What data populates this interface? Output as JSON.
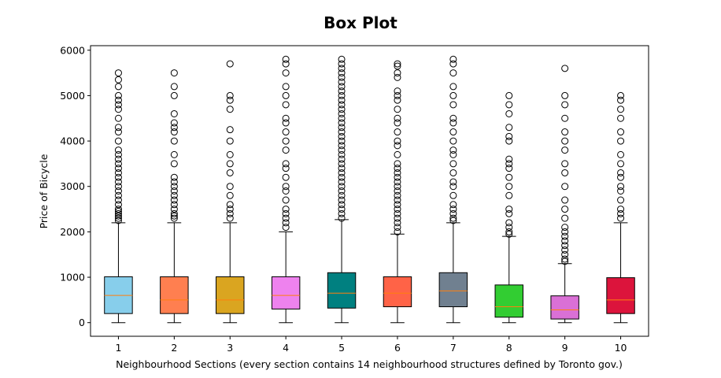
{
  "chart_data": {
    "type": "box",
    "title": "Box Plot",
    "xlabel": "Neighbourhood Sections (every section contains 14 neighbourhood structures defined by Toronto gov.)",
    "ylabel": "Price of Bicycle",
    "ylim": [
      -300,
      6100
    ],
    "yticks": [
      0,
      1000,
      2000,
      3000,
      4000,
      5000,
      6000
    ],
    "grid": false,
    "median_color": "#ff7f0e",
    "boxes": [
      {
        "label": "1",
        "color": "#87ceeb",
        "whisker_low": 0,
        "q1": 200,
        "median": 600,
        "q3": 1010,
        "whisker_high": 2200,
        "fliers": [
          2250,
          2300,
          2350,
          2400,
          2450,
          2500,
          2600,
          2700,
          2800,
          2900,
          3000,
          3100,
          3200,
          3300,
          3400,
          3500,
          3600,
          3700,
          3800,
          4000,
          4200,
          4300,
          4500,
          4700,
          4800,
          4900,
          5000,
          5200,
          5350,
          5500
        ]
      },
      {
        "label": "2",
        "color": "#ff7f50",
        "whisker_low": 0,
        "q1": 200,
        "median": 500,
        "q3": 1010,
        "whisker_high": 2200,
        "fliers": [
          2300,
          2350,
          2400,
          2500,
          2600,
          2700,
          2800,
          2900,
          3000,
          3100,
          3200,
          3500,
          3700,
          4000,
          4200,
          4300,
          4400,
          4600,
          5000,
          5200,
          5500
        ]
      },
      {
        "label": "3",
        "color": "#daa520",
        "whisker_low": 0,
        "q1": 200,
        "median": 500,
        "q3": 1010,
        "whisker_high": 2200,
        "fliers": [
          2300,
          2400,
          2500,
          2600,
          2800,
          3000,
          3300,
          3500,
          3700,
          4000,
          4250,
          4700,
          4900,
          5000,
          5700
        ]
      },
      {
        "label": "4",
        "color": "#ee82ee",
        "whisker_low": 0,
        "q1": 300,
        "median": 600,
        "q3": 1010,
        "whisker_high": 2000,
        "fliers": [
          2100,
          2200,
          2300,
          2400,
          2500,
          2700,
          2900,
          3000,
          3200,
          3400,
          3500,
          3800,
          4000,
          4200,
          4400,
          4500,
          4800,
          5000,
          5200,
          5500,
          5700,
          5800
        ]
      },
      {
        "label": "5",
        "color": "#008080",
        "whisker_low": 0,
        "q1": 320,
        "median": 650,
        "q3": 1100,
        "whisker_high": 2270,
        "fliers": [
          2300,
          2400,
          2500,
          2600,
          2700,
          2800,
          2900,
          3000,
          3100,
          3200,
          3300,
          3400,
          3500,
          3600,
          3700,
          3800,
          3900,
          4000,
          4100,
          4200,
          4300,
          4400,
          4500,
          4600,
          4700,
          4800,
          4900,
          5000,
          5100,
          5200,
          5300,
          5400,
          5500,
          5600,
          5700,
          5800
        ]
      },
      {
        "label": "6",
        "color": "#ff6347",
        "whisker_low": 0,
        "q1": 350,
        "median": 650,
        "q3": 1010,
        "whisker_high": 1950,
        "fliers": [
          2000,
          2100,
          2200,
          2300,
          2400,
          2500,
          2600,
          2700,
          2800,
          2900,
          3000,
          3100,
          3200,
          3300,
          3400,
          3500,
          3700,
          3900,
          4000,
          4200,
          4400,
          4500,
          4700,
          4900,
          5000,
          5100,
          5400,
          5500,
          5650,
          5700
        ]
      },
      {
        "label": "7",
        "color": "#708090",
        "whisker_low": 0,
        "q1": 350,
        "median": 700,
        "q3": 1100,
        "whisker_high": 2200,
        "fliers": [
          2250,
          2300,
          2400,
          2500,
          2600,
          2800,
          3000,
          3100,
          3300,
          3500,
          3700,
          3800,
          4000,
          4200,
          4400,
          4500,
          4800,
          5000,
          5200,
          5500,
          5700,
          5800
        ]
      },
      {
        "label": "8",
        "color": "#32cd32",
        "whisker_low": 0,
        "q1": 120,
        "median": 350,
        "q3": 830,
        "whisker_high": 1900,
        "fliers": [
          1950,
          2000,
          2100,
          2200,
          2400,
          2500,
          2800,
          3000,
          3200,
          3400,
          3500,
          3600,
          4000,
          4100,
          4300,
          4600,
          4800,
          5000
        ]
      },
      {
        "label": "9",
        "color": "#da70d6",
        "whisker_low": 0,
        "q1": 80,
        "median": 280,
        "q3": 590,
        "whisker_high": 1300,
        "fliers": [
          1350,
          1400,
          1500,
          1600,
          1700,
          1800,
          1900,
          2000,
          2100,
          2300,
          2500,
          2700,
          3000,
          3300,
          3500,
          3800,
          4000,
          4200,
          4500,
          4800,
          5000,
          5600
        ]
      },
      {
        "label": "10",
        "color": "#dc143c",
        "whisker_low": 0,
        "q1": 200,
        "median": 500,
        "q3": 990,
        "whisker_high": 2200,
        "fliers": [
          2300,
          2400,
          2500,
          2700,
          2900,
          3000,
          3200,
          3300,
          3500,
          3700,
          4000,
          4200,
          4500,
          4700,
          4900,
          5000
        ]
      }
    ]
  }
}
